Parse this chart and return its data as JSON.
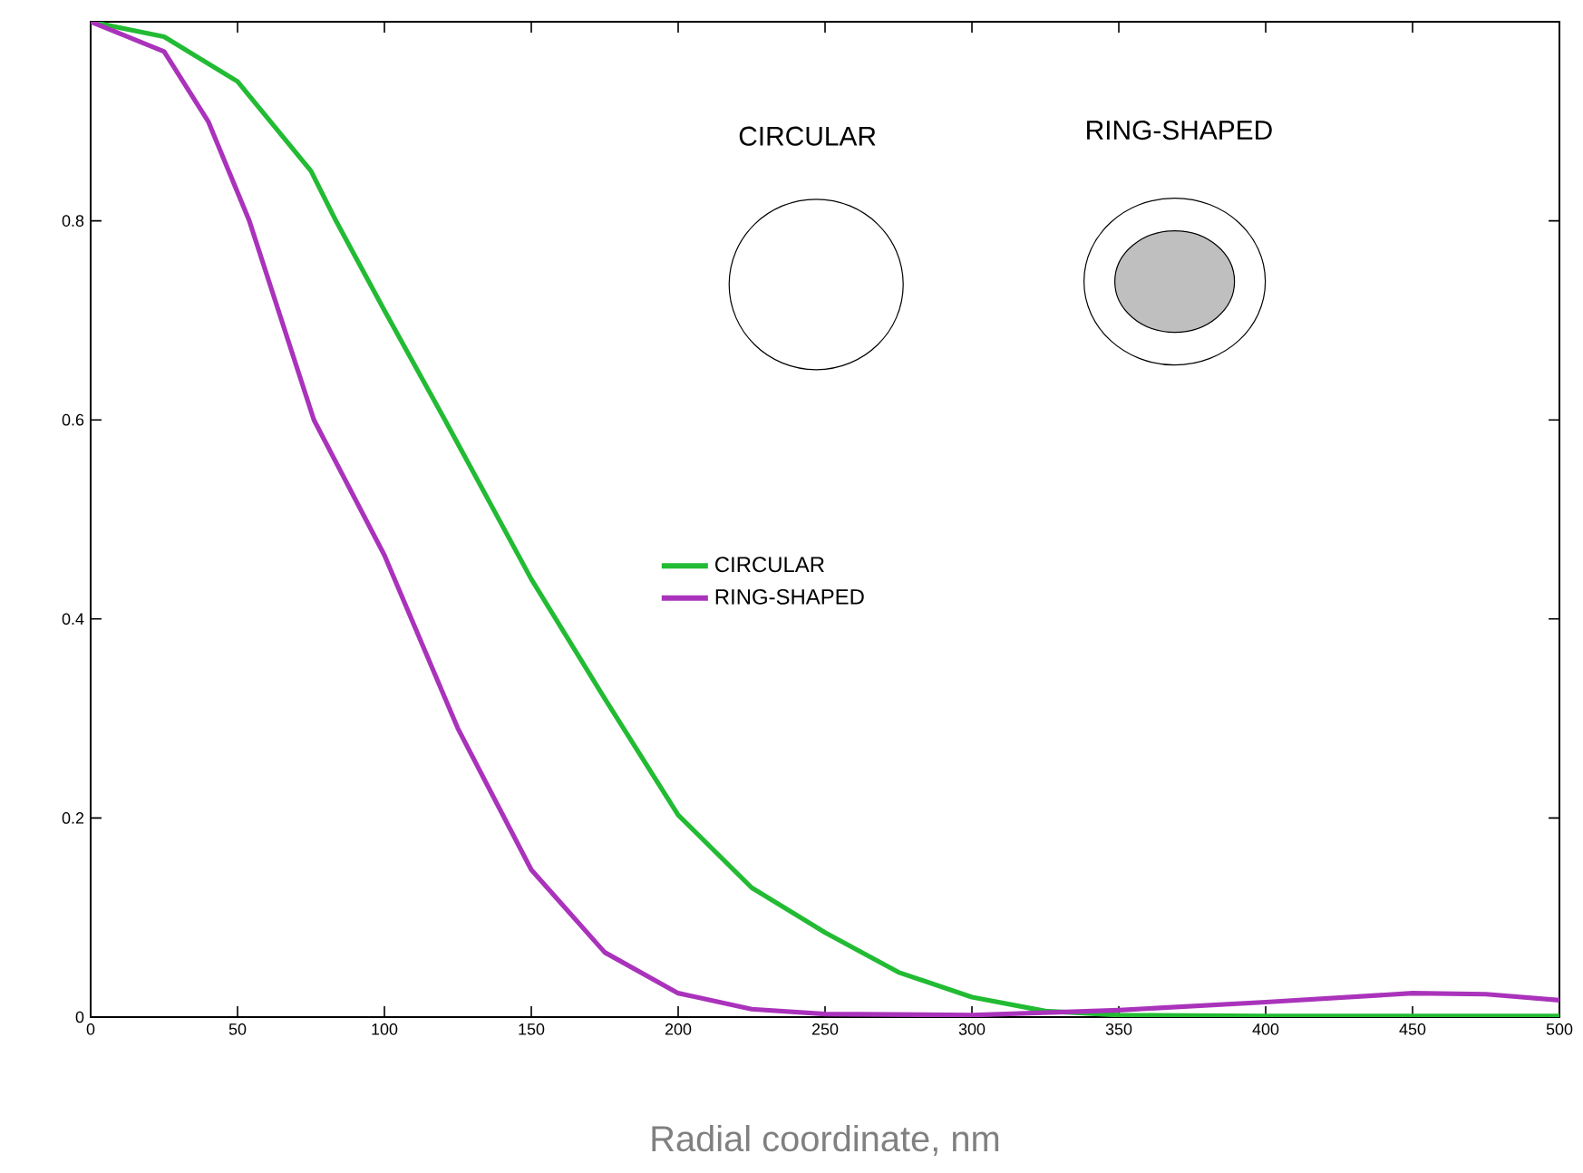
{
  "chart_data": {
    "type": "line",
    "xlabel": "Radial coordinate, nm",
    "annotations": [
      "CIRCULAR",
      "RING-SHAPED"
    ],
    "xlim": [
      0,
      500
    ],
    "xticks": [
      0,
      50,
      100,
      150,
      200,
      250,
      300,
      350,
      400,
      450,
      500
    ],
    "ylim": [
      0,
      1
    ],
    "yticks": [
      0,
      0.2,
      0.4,
      0.6,
      0.8
    ],
    "legend": "center",
    "series": [
      {
        "name": "CIRCULAR",
        "color": "#22bb33",
        "x": [
          0,
          25,
          50,
          75,
          83.5,
          100,
          120.6,
          150,
          175,
          200,
          225,
          250,
          275,
          300,
          325,
          350,
          400,
          450,
          500
        ],
        "values": [
          1.0,
          0.985,
          0.94,
          0.85,
          0.8,
          0.71,
          0.6,
          0.44,
          0.32,
          0.203,
          0.13,
          0.085,
          0.045,
          0.02,
          0.006,
          0.002,
          0.001,
          0.001,
          0.001
        ]
      },
      {
        "name": "RING-SHAPED",
        "color": "#aa33bb",
        "x": [
          0,
          25,
          40,
          54,
          76,
          100,
          125,
          150,
          175,
          200,
          225,
          250,
          300,
          350,
          400,
          450,
          475,
          500
        ],
        "values": [
          1.0,
          0.97,
          0.9,
          0.8,
          0.6,
          0.464,
          0.29,
          0.148,
          0.065,
          0.024,
          0.008,
          0.003,
          0.002,
          0.007,
          0.015,
          0.024,
          0.023,
          0.017
        ]
      }
    ]
  }
}
